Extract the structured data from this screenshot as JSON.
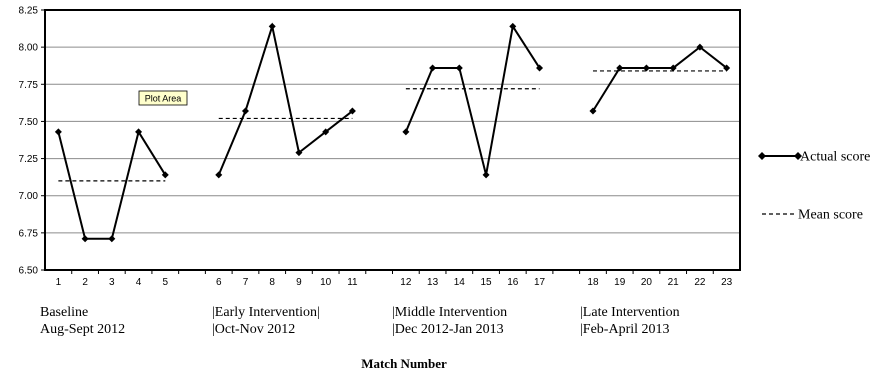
{
  "chart_data": {
    "type": "line",
    "xlabel": "Match Number",
    "ylabel": "",
    "ylim": [
      6.5,
      8.25
    ],
    "yticks": [
      "6.50",
      "6.75",
      "7.00",
      "7.25",
      "7.50",
      "7.75",
      "8.00",
      "8.25"
    ],
    "grid": true,
    "legend_position": "right",
    "tooltip": "Plot Area",
    "categories": [
      "1",
      "2",
      "3",
      "4",
      "5",
      "",
      "6",
      "7",
      "8",
      "9",
      "10",
      "11",
      "",
      "12",
      "13",
      "14",
      "15",
      "16",
      "17",
      "",
      "18",
      "19",
      "20",
      "21",
      "22",
      "23"
    ],
    "phases": [
      {
        "line1": "Baseline",
        "line2": "Aug-Sept 2012",
        "matches": [
          1,
          2,
          3,
          4,
          5
        ],
        "values": [
          7.43,
          6.71,
          6.71,
          7.43,
          7.14
        ],
        "mean": 7.1
      },
      {
        "line1": "|Early Intervention|",
        "line2": "|Oct-Nov 2012",
        "matches": [
          6,
          7,
          8,
          9,
          10,
          11
        ],
        "values": [
          7.14,
          7.57,
          8.14,
          7.29,
          7.43,
          7.57
        ],
        "mean": 7.52
      },
      {
        "line1": "|Middle Intervention",
        "line2": "|Dec 2012-Jan 2013",
        "matches": [
          12,
          13,
          14,
          15,
          16,
          17
        ],
        "values": [
          7.43,
          7.86,
          7.86,
          7.14,
          8.14,
          7.86
        ],
        "mean": 7.72
      },
      {
        "line1": "|Late Intervention",
        "line2": "|Feb-April 2013",
        "matches": [
          18,
          19,
          20,
          21,
          22,
          23
        ],
        "values": [
          7.57,
          7.86,
          7.86,
          7.86,
          8.0,
          7.86
        ],
        "mean": 7.84
      }
    ],
    "series": [
      {
        "name": "Actual score",
        "style": "solid-diamond"
      },
      {
        "name": "Mean score",
        "style": "dashed"
      }
    ]
  },
  "colors": {
    "line": "#000000",
    "grid": "#8c8c8c",
    "tooltip_bg": "#ffffcc"
  }
}
